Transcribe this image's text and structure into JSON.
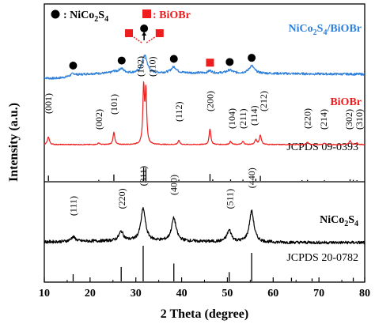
{
  "chart_data": {
    "type": "line",
    "xlabel": "2 Theta (degree)",
    "ylabel": "Intensity (a.u.)",
    "xlim": [
      10,
      80
    ],
    "xticks": [
      10,
      20,
      30,
      40,
      50,
      60,
      70,
      80
    ],
    "y_ticks_shown": false,
    "grid": false,
    "colors": {
      "composite": "#2e7fd9",
      "biobr": "#ee1c1c",
      "nico2s4": "#000000",
      "marker_circle": "#000000",
      "marker_square": "#ee1c1c",
      "reference_lines": "#000000"
    },
    "legend": [
      {
        "symbol": "●",
        "symbol_color": "#000000",
        "text": ": NiCo",
        "sub": "2",
        "text2": "S",
        "sub2": "4"
      },
      {
        "symbol": "■",
        "symbol_color": "#ee1c1c",
        "text": ": BiOBr"
      }
    ],
    "series": [
      {
        "name": "NiCo2S4/BiOBr",
        "label_parts": [
          "NiCo",
          "2",
          "S",
          "4",
          "/BiOBr"
        ],
        "baseline": 0.8,
        "noise": 1.5,
        "peaks": [
          {
            "x": 16.3,
            "h": 3,
            "w": 0.6
          },
          {
            "x": 25.2,
            "h": 2,
            "w": 0.5
          },
          {
            "x": 26.8,
            "h": 6,
            "w": 0.7
          },
          {
            "x": 31.8,
            "h": 18,
            "w": 0.6
          },
          {
            "x": 32.2,
            "h": 8,
            "w": 0.5
          },
          {
            "x": 38.3,
            "h": 8,
            "w": 0.7
          },
          {
            "x": 46.2,
            "h": 3,
            "w": 0.5
          },
          {
            "x": 50.5,
            "h": 4,
            "w": 0.7
          },
          {
            "x": 55.3,
            "h": 10,
            "w": 0.7
          }
        ],
        "markers": [
          {
            "x": 16.3,
            "shape": "circle"
          },
          {
            "x": 26.9,
            "shape": "circle"
          },
          {
            "x": 28.5,
            "shape": "square"
          },
          {
            "x": 31.8,
            "shape": "circle"
          },
          {
            "x": 35.2,
            "shape": "square"
          },
          {
            "x": 38.3,
            "shape": "circle"
          },
          {
            "x": 46.2,
            "shape": "square"
          },
          {
            "x": 50.5,
            "shape": "circle"
          },
          {
            "x": 55.3,
            "shape": "circle"
          }
        ]
      },
      {
        "name": "BiOBr",
        "baseline": 0,
        "noise": 0.5,
        "peaks": [
          {
            "x": 10.9,
            "h": 10,
            "w": 0.25
          },
          {
            "x": 21.9,
            "h": 2,
            "w": 0.25
          },
          {
            "x": 25.2,
            "h": 16,
            "w": 0.22
          },
          {
            "x": 31.7,
            "h": 72,
            "w": 0.2
          },
          {
            "x": 32.2,
            "h": 66,
            "w": 0.2
          },
          {
            "x": 39.4,
            "h": 5,
            "w": 0.25
          },
          {
            "x": 46.2,
            "h": 20,
            "w": 0.22
          },
          {
            "x": 50.7,
            "h": 4,
            "w": 0.25
          },
          {
            "x": 53.4,
            "h": 4,
            "w": 0.25
          },
          {
            "x": 56.2,
            "h": 6,
            "w": 0.25
          },
          {
            "x": 57.2,
            "h": 12,
            "w": 0.25
          },
          {
            "x": 67.5,
            "h": 3,
            "w": 0.25
          },
          {
            "x": 71.2,
            "h": 2,
            "w": 0.25
          },
          {
            "x": 76.8,
            "h": 5,
            "w": 0.25
          },
          {
            "x": 78.3,
            "h": 2,
            "w": 0.25
          }
        ],
        "hkl_labels": [
          {
            "x": 10.9,
            "text": "(001)",
            "h": 37
          },
          {
            "x": 21.9,
            "text": "(002)",
            "h": 17
          },
          {
            "x": 25.2,
            "text": "(101)",
            "h": 36
          },
          {
            "x": 31.0,
            "text": "(102)",
            "h": 84
          },
          {
            "x": 33.6,
            "text": "(110)",
            "h": 84
          },
          {
            "x": 39.4,
            "text": "(112)",
            "h": 27
          },
          {
            "x": 46.2,
            "text": "(200)",
            "h": 40
          },
          {
            "x": 51.0,
            "text": "(104)",
            "h": 18
          },
          {
            "x": 53.4,
            "text": "(211)",
            "h": 18
          },
          {
            "x": 55.8,
            "text": "(114)",
            "h": 22
          },
          {
            "x": 57.9,
            "text": "(212)",
            "h": 40
          },
          {
            "x": 67.5,
            "text": "(220)",
            "h": 18
          },
          {
            "x": 71.0,
            "text": "(214)",
            "h": 17
          },
          {
            "x": 76.5,
            "text": "(302)",
            "h": 17
          },
          {
            "x": 78.8,
            "text": "(310)",
            "h": 17
          }
        ]
      },
      {
        "name": "NiCo2S4",
        "label_parts": [
          "NiCo",
          "2",
          "S",
          "4"
        ],
        "baseline": 0,
        "noise": 1.3,
        "peaks": [
          {
            "x": 16.3,
            "h": 4,
            "w": 0.6
          },
          {
            "x": 26.8,
            "h": 8,
            "w": 0.6
          },
          {
            "x": 31.6,
            "h": 28,
            "w": 0.6
          },
          {
            "x": 38.3,
            "h": 20,
            "w": 0.6
          },
          {
            "x": 50.4,
            "h": 10,
            "w": 0.6
          },
          {
            "x": 55.3,
            "h": 27,
            "w": 0.6
          }
        ],
        "hkl_labels": [
          {
            "x": 16.3,
            "text": "(111)",
            "h": 22
          },
          {
            "x": 26.9,
            "text": "(220)",
            "h": 28
          },
          {
            "x": 31.6,
            "text": "(311)",
            "h": 48
          },
          {
            "x": 38.3,
            "text": "(400)",
            "h": 40
          },
          {
            "x": 50.5,
            "text": "(511)",
            "h": 28
          },
          {
            "x": 55.3,
            "text": "(440)",
            "h": 46
          }
        ]
      }
    ],
    "references": [
      {
        "label": "JCPDS 09-0393",
        "lines": [
          {
            "x": 10.9,
            "h": 40
          },
          {
            "x": 21.9,
            "h": 8
          },
          {
            "x": 25.2,
            "h": 48
          },
          {
            "x": 31.7,
            "h": 100
          },
          {
            "x": 32.2,
            "h": 96
          },
          {
            "x": 39.4,
            "h": 10
          },
          {
            "x": 46.2,
            "h": 52
          },
          {
            "x": 46.8,
            "h": 12
          },
          {
            "x": 50.7,
            "h": 12
          },
          {
            "x": 53.4,
            "h": 10
          },
          {
            "x": 56.2,
            "h": 16
          },
          {
            "x": 57.2,
            "h": 38
          },
          {
            "x": 66.3,
            "h": 6
          },
          {
            "x": 67.5,
            "h": 8
          },
          {
            "x": 71.2,
            "h": 6
          },
          {
            "x": 76.8,
            "h": 12
          },
          {
            "x": 77.5,
            "h": 8
          },
          {
            "x": 78.3,
            "h": 6
          }
        ]
      },
      {
        "label": "JCPDS 20-0782",
        "lines": [
          {
            "x": 16.3,
            "h": 20
          },
          {
            "x": 26.8,
            "h": 40
          },
          {
            "x": 31.6,
            "h": 100
          },
          {
            "x": 38.3,
            "h": 50
          },
          {
            "x": 50.4,
            "h": 26
          },
          {
            "x": 55.3,
            "h": 80
          },
          {
            "x": 64.0,
            "h": 10
          },
          {
            "x": 68.5,
            "h": 8
          },
          {
            "x": 77.5,
            "h": 10
          }
        ]
      }
    ]
  }
}
